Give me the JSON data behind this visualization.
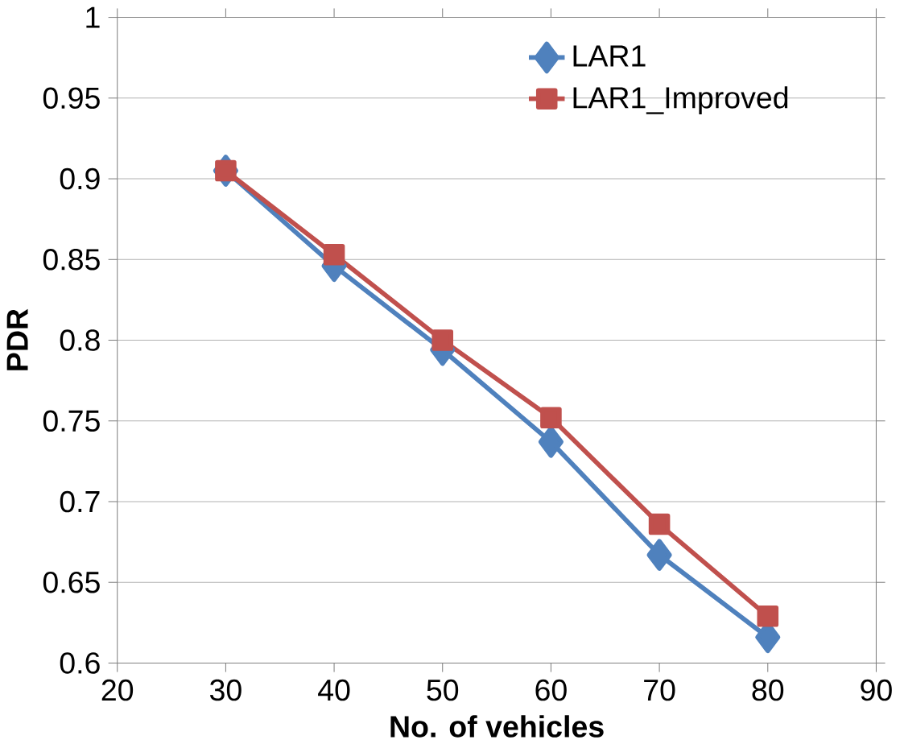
{
  "chart_data": {
    "type": "line",
    "xlabel": "No. of vehicles",
    "ylabel": "PDR",
    "x": [
      30,
      40,
      50,
      60,
      70,
      80
    ],
    "series": [
      {
        "name": "LAR1",
        "color": "#4f81bd",
        "marker": "diamond",
        "values": [
          0.905,
          0.846,
          0.794,
          0.737,
          0.667,
          0.616
        ]
      },
      {
        "name": "LAR1_Improved",
        "color": "#c0504d",
        "marker": "square",
        "values": [
          0.905,
          0.853,
          0.8,
          0.752,
          0.686,
          0.629
        ]
      }
    ],
    "xlim": [
      20,
      90
    ],
    "xticks": [
      20,
      30,
      40,
      50,
      60,
      70,
      80,
      90
    ],
    "ylim": [
      0.6,
      1
    ],
    "yticks": [
      0.6,
      0.65,
      0.7,
      0.75,
      0.8,
      0.85,
      0.9,
      0.95,
      1
    ],
    "grid": "y",
    "legend": "top right",
    "line_style": "solid"
  }
}
